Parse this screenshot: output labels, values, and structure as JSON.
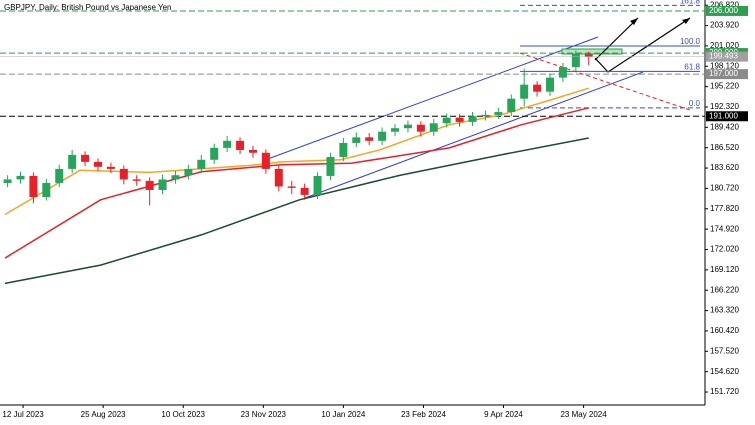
{
  "chart_data": {
    "type": "candlestick",
    "title": "GBPJPY, Daily:  British Pound vs Japanese Yen",
    "xlim": [
      0,
      271
    ],
    "ylim": [
      149.87,
      207.56
    ],
    "xticks": [
      {
        "value": 7,
        "label": "12 Jul 2023"
      },
      {
        "value": 38,
        "label": "25 Aug 2023"
      },
      {
        "value": 69,
        "label": "10 Oct 2023"
      },
      {
        "value": 100,
        "label": "23 Nov 2023"
      },
      {
        "value": 131,
        "label": "10 Jan 2024"
      },
      {
        "value": 162,
        "label": "23 Feb 2024"
      },
      {
        "value": 193,
        "label": "9 Apr 2024"
      },
      {
        "value": 224,
        "label": "23 May 2024"
      }
    ],
    "yticks": [
      {
        "value": 151.72,
        "label": "151.720"
      },
      {
        "value": 154.62,
        "label": "154.620"
      },
      {
        "value": 157.52,
        "label": "157.520"
      },
      {
        "value": 160.42,
        "label": "160.420"
      },
      {
        "value": 163.32,
        "label": "163.320"
      },
      {
        "value": 166.22,
        "label": "166.220"
      },
      {
        "value": 169.12,
        "label": "169.120"
      },
      {
        "value": 172.02,
        "label": "172.020"
      },
      {
        "value": 174.92,
        "label": "174.920"
      },
      {
        "value": 177.82,
        "label": "177.820"
      },
      {
        "value": 180.72,
        "label": "180.720"
      },
      {
        "value": 183.62,
        "label": "183.620"
      },
      {
        "value": 186.52,
        "label": "186.520"
      },
      {
        "value": 189.42,
        "label": "189.420"
      },
      {
        "value": 192.32,
        "label": "192.320"
      },
      {
        "value": 195.22,
        "label": "195.220"
      },
      {
        "value": 198.12,
        "label": "198.120"
      },
      {
        "value": 201.02,
        "label": "201.020"
      },
      {
        "value": 203.92,
        "label": "203.920"
      },
      {
        "value": 206.82,
        "label": "206.820"
      }
    ],
    "up_color": "#26a65b",
    "down_color": "#e8202a",
    "candles": {
      "x": [
        1,
        6,
        11,
        16,
        21,
        26,
        31,
        36,
        41,
        46,
        51,
        56,
        61,
        66,
        71,
        76,
        81,
        86,
        91,
        96,
        101,
        106,
        111,
        116,
        121,
        126,
        131,
        136,
        141,
        146,
        151,
        156,
        161,
        166,
        171,
        176,
        181,
        186,
        191,
        196,
        201,
        206,
        211,
        216,
        221,
        226
      ],
      "open": [
        181.5,
        182.0,
        182.5,
        179.5,
        181.5,
        183.5,
        185.5,
        184.5,
        183.8,
        183.5,
        182.0,
        181.8,
        180.5,
        182.0,
        182.6,
        183.5,
        184.8,
        186.5,
        187.5,
        186.2,
        185.8,
        183.5,
        181.0,
        180.8,
        179.8,
        182.5,
        185.2,
        187.2,
        188.0,
        187.5,
        188.8,
        189.3,
        189.8,
        188.8,
        190.0,
        190.8,
        190.2,
        191.0,
        191.2,
        191.6,
        193.5,
        195.5,
        194.5,
        196.5,
        198.0,
        199.8
      ],
      "high": [
        182.6,
        183.1,
        183.0,
        182.1,
        184.1,
        186.2,
        186.0,
        185.0,
        184.4,
        184.0,
        182.6,
        182.3,
        182.7,
        183.2,
        184.1,
        185.5,
        187.1,
        188.2,
        188.0,
        186.8,
        186.3,
        184.0,
        181.8,
        181.4,
        183.0,
        185.8,
        187.9,
        188.7,
        188.6,
        189.4,
        189.9,
        190.4,
        190.3,
        190.6,
        191.4,
        191.3,
        191.6,
        191.8,
        192.2,
        194.1,
        197.8,
        196.0,
        197.1,
        198.6,
        200.4,
        200.2
      ],
      "low": [
        180.9,
        181.4,
        178.6,
        179.0,
        180.9,
        182.9,
        183.9,
        183.2,
        182.9,
        181.3,
        181.1,
        178.3,
        179.9,
        181.4,
        182.0,
        182.9,
        184.2,
        185.9,
        185.6,
        185.1,
        182.8,
        180.3,
        179.9,
        179.1,
        179.2,
        181.9,
        184.6,
        186.6,
        186.9,
        186.9,
        188.2,
        188.7,
        188.1,
        188.2,
        189.4,
        189.5,
        189.6,
        190.4,
        190.6,
        191.0,
        192.4,
        193.8,
        193.9,
        195.9,
        197.4,
        198.3
      ],
      "close": [
        182.0,
        182.5,
        179.5,
        181.5,
        183.5,
        185.5,
        184.5,
        183.8,
        183.5,
        182.0,
        181.8,
        180.5,
        182.0,
        182.6,
        183.5,
        184.8,
        186.5,
        187.5,
        186.2,
        185.8,
        183.5,
        181.0,
        180.8,
        179.8,
        182.5,
        185.2,
        187.2,
        188.0,
        187.5,
        188.8,
        189.3,
        189.8,
        188.8,
        190.0,
        190.8,
        190.2,
        191.0,
        191.2,
        191.6,
        193.5,
        195.5,
        194.5,
        196.5,
        198.0,
        199.8,
        199.493
      ]
    },
    "series": [
      {
        "color": "#f5a623",
        "x": [
          0,
          29,
          56,
          95,
          107,
          130,
          145,
          172,
          192,
          211,
          226
        ],
        "values": [
          177.0,
          183.3,
          183.0,
          184.0,
          184.5,
          184.8,
          186.2,
          189.8,
          191.2,
          193.3,
          195.0
        ]
      },
      {
        "color": "#e8202a",
        "x": [
          0,
          37,
          76,
          107,
          134,
          172,
          200,
          226
        ],
        "values": [
          170.8,
          179.1,
          183.1,
          184.1,
          184.3,
          186.5,
          189.8,
          192.2
        ]
      },
      {
        "color": "#1a4d2e",
        "x": [
          0,
          37,
          76,
          114,
          153,
          192,
          226
        ],
        "values": [
          167.2,
          169.8,
          174.1,
          179.1,
          182.6,
          185.5,
          187.9
        ]
      }
    ],
    "levels": [
      {
        "value": 206,
        "label": "206.000",
        "color": "#2e9e4f"
      },
      {
        "value": 200,
        "label": "200.000",
        "color": "#2e9e4f"
      },
      {
        "value": 197,
        "label": "197.000",
        "color": "#8a8a8a"
      },
      {
        "value": 191,
        "label": "191.000",
        "color": "#000000"
      }
    ],
    "fibonacci": {
      "color": "#3b4cc0",
      "levels": [
        {
          "label": "161.8",
          "value": 206.8
        },
        {
          "label": "100.0",
          "value": 201.0
        },
        {
          "label": "61.8",
          "value": 197.4
        },
        {
          "label": "0.0",
          "value": 192.2
        }
      ]
    }
  }
}
